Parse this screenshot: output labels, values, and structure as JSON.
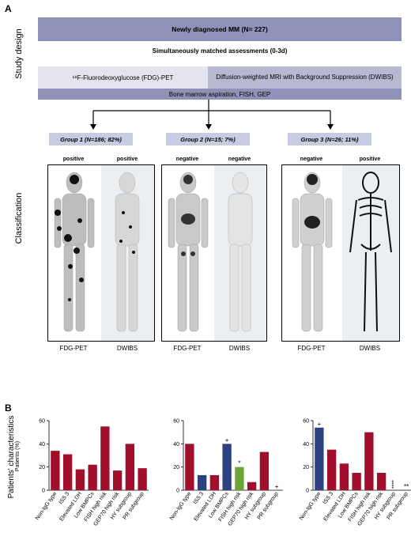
{
  "panel_a": {
    "letter": "A",
    "side_label_top": "Study design",
    "side_label_mid": "Classification",
    "box_newly": "Newly diagnosed MM (N= 227)",
    "sim_label": "Simultaneously matched assessments (0-3d)",
    "box_pet": "¹⁸F-Fluorodeoxyglucose (FDG)-PET",
    "box_dwibs": "Diffusion-weighted MRI with Background Suppression (DWIBS)",
    "box_bm": "Bone marrow aspiration, FISH, GEP",
    "groups": [
      {
        "label": "Group 1 (N=186; 82%)",
        "pet": "positive",
        "dwibs": "positive",
        "mod_pet": "FDG-PET",
        "mod_dwibs": "DWIBS"
      },
      {
        "label": "Group 2 (N=15; 7%)",
        "pet": "negative",
        "dwibs": "negative",
        "mod_pet": "FDG-PET",
        "mod_dwibs": "DWIBS"
      },
      {
        "label": "Group 3 (N=26; 11%)",
        "pet": "negative",
        "dwibs": "positive",
        "mod_pet": "FDG-PET",
        "mod_dwibs": "DWIBS"
      }
    ]
  },
  "panel_b": {
    "letter": "B",
    "ylabel_main": "Patients' characteristics",
    "ylabel_sub": "Patients (%)"
  },
  "colors": {
    "box_dark": "#8e91b8",
    "box_light": "#e3e4ef",
    "box_mid": "#b7b9d3",
    "group_box": "#c9cbe0",
    "red": "#a0102d",
    "blue": "#2b4180",
    "green": "#6aa636"
  },
  "chart_data": [
    {
      "type": "bar",
      "categories": [
        "Non-IgG type",
        "ISS 3",
        "Elevated LDH",
        "Low BMPCs",
        "FISH high risk",
        "GEP70 high risk",
        "HY subgroup",
        "PR subgroup"
      ],
      "values": [
        34,
        31,
        18,
        22,
        55,
        17,
        40,
        19
      ],
      "colors": [
        "red",
        "red",
        "red",
        "red",
        "red",
        "red",
        "red",
        "red"
      ],
      "annotations": [
        "",
        "",
        "",
        "",
        "",
        "",
        "",
        ""
      ],
      "ylim": [
        0,
        60
      ],
      "yticks": [
        0,
        20,
        40,
        60
      ]
    },
    {
      "type": "bar",
      "categories": [
        "Non-IgG type",
        "ISS 3",
        "Elevated LDH",
        "Low BMPCs",
        "FISH high risk",
        "GEP70 high risk",
        "HY subgroup",
        "PR subgroup"
      ],
      "values": [
        40,
        13,
        13,
        40,
        20,
        7,
        33,
        0
      ],
      "colors": [
        "red",
        "blue",
        "red",
        "blue",
        "green",
        "red",
        "red",
        "red"
      ],
      "annotations": [
        "",
        "",
        "",
        "+",
        "*",
        "",
        "",
        "+"
      ],
      "ylim": [
        0,
        60
      ],
      "yticks": [
        0,
        20,
        40,
        60
      ]
    },
    {
      "type": "bar",
      "categories": [
        "Non-IgG type",
        "ISS 3",
        "Elevated LDH",
        "Low BMPCs",
        "FISH high risk",
        "GEP70 high risk",
        "HY subgroup",
        "PR subgroup"
      ],
      "values": [
        54,
        35,
        23,
        15,
        50,
        15,
        0,
        0
      ],
      "colors": [
        "blue",
        "red",
        "red",
        "red",
        "red",
        "red",
        "red",
        "red"
      ],
      "annotations": [
        "+",
        "",
        "",
        "",
        "",
        "",
        "****",
        "**"
      ],
      "ylim": [
        0,
        60
      ],
      "yticks": [
        0,
        20,
        40,
        60
      ]
    }
  ]
}
